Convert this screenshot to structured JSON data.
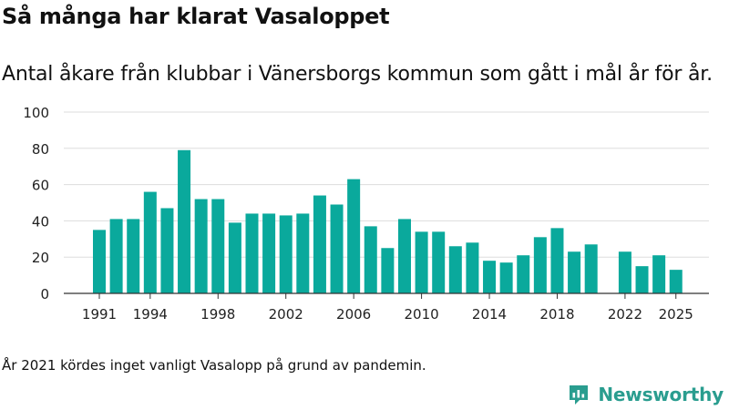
{
  "title": "Så många har klarat Vasaloppet",
  "subtitle": "Antal åkare från klubbar i Vänersborgs kommun som gått i mål år för år.",
  "note": "År 2021 kördes inget vanligt Vasalopp på grund av pandemin.",
  "brand": {
    "name": "Newsworthy",
    "icon": "newsworthy-logo-icon",
    "color": "#2a9d8f"
  },
  "colors": {
    "bar": "#0aa99c",
    "grid": "#dddddd",
    "axis": "#333333",
    "text": "#222222"
  },
  "chart_data": {
    "type": "bar",
    "title": "Så många har klarat Vasaloppet",
    "xlabel": "",
    "ylabel": "",
    "ylim": [
      0,
      100
    ],
    "yticks": [
      0,
      20,
      40,
      60,
      80,
      100
    ],
    "xticks": [
      1991,
      1994,
      1998,
      2002,
      2006,
      2010,
      2014,
      2018,
      2022,
      2025
    ],
    "categories": [
      1991,
      1992,
      1993,
      1994,
      1995,
      1996,
      1997,
      1998,
      1999,
      2000,
      2001,
      2002,
      2003,
      2004,
      2005,
      2006,
      2007,
      2008,
      2009,
      2010,
      2011,
      2012,
      2013,
      2014,
      2015,
      2016,
      2017,
      2018,
      2019,
      2020,
      2021,
      2022,
      2023,
      2024,
      2025
    ],
    "values": [
      35,
      41,
      41,
      56,
      47,
      79,
      52,
      52,
      39,
      44,
      44,
      43,
      44,
      54,
      49,
      63,
      37,
      25,
      41,
      34,
      34,
      26,
      28,
      18,
      17,
      21,
      31,
      36,
      23,
      27,
      null,
      23,
      15,
      21,
      13
    ],
    "grid": true,
    "legend": "none"
  }
}
